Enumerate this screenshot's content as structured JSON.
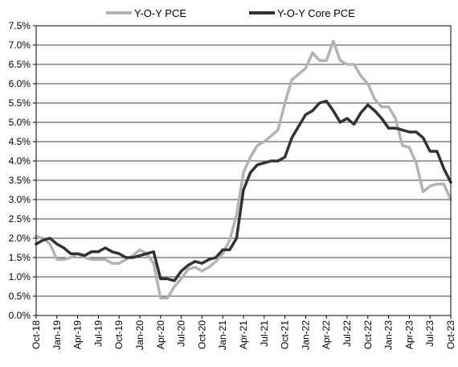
{
  "chart_data": {
    "type": "line",
    "title": "",
    "xlabel": "",
    "ylabel": "",
    "ylim": [
      0,
      7.5
    ],
    "y_ticks": [
      "0.0%",
      "0.5%",
      "1.0%",
      "1.5%",
      "2.0%",
      "2.5%",
      "3.0%",
      "3.5%",
      "4.0%",
      "4.5%",
      "5.0%",
      "5.5%",
      "6.0%",
      "6.5%",
      "7.0%",
      "7.5%"
    ],
    "x_ticks": [
      "Oct-18",
      "Jan-19",
      "Apr-19",
      "Jul-19",
      "Oct-19",
      "Jan-20",
      "Apr-20",
      "Jul-20",
      "Oct-20",
      "Jan-21",
      "Apr-21",
      "Jul-21",
      "Oct-21",
      "Jan-22",
      "Apr-22",
      "Jul-22",
      "Oct-22",
      "Jan-23",
      "Apr-23",
      "Jul-23",
      "Oct-23"
    ],
    "grid": "horizontal",
    "legend_position": "top",
    "colors": {
      "pce": "#b3b3b3",
      "core": "#333333"
    },
    "x": [
      "Oct-18",
      "Nov-18",
      "Dec-18",
      "Jan-19",
      "Feb-19",
      "Mar-19",
      "Apr-19",
      "May-19",
      "Jun-19",
      "Jul-19",
      "Aug-19",
      "Sep-19",
      "Oct-19",
      "Nov-19",
      "Dec-19",
      "Jan-20",
      "Feb-20",
      "Mar-20",
      "Apr-20",
      "May-20",
      "Jun-20",
      "Jul-20",
      "Aug-20",
      "Sep-20",
      "Oct-20",
      "Nov-20",
      "Dec-20",
      "Jan-21",
      "Feb-21",
      "Mar-21",
      "Apr-21",
      "May-21",
      "Jun-21",
      "Jul-21",
      "Aug-21",
      "Sep-21",
      "Oct-21",
      "Nov-21",
      "Dec-21",
      "Jan-22",
      "Feb-22",
      "Mar-22",
      "Apr-22",
      "May-22",
      "Jun-22",
      "Jul-22",
      "Aug-22",
      "Sep-22",
      "Oct-22",
      "Nov-22",
      "Dec-22",
      "Jan-23",
      "Feb-23",
      "Mar-23",
      "Apr-23",
      "May-23",
      "Jun-23",
      "Jul-23",
      "Aug-23",
      "Sep-23",
      "Oct-23"
    ],
    "series": [
      {
        "name": "Y-O-Y PCE",
        "values": [
          2.05,
          2.0,
          1.85,
          1.45,
          1.45,
          1.5,
          1.6,
          1.5,
          1.45,
          1.45,
          1.45,
          1.35,
          1.35,
          1.45,
          1.55,
          1.7,
          1.6,
          1.35,
          0.45,
          0.45,
          0.75,
          0.95,
          1.2,
          1.25,
          1.15,
          1.25,
          1.4,
          1.6,
          1.95,
          2.6,
          3.7,
          4.1,
          4.4,
          4.5,
          4.65,
          4.8,
          5.5,
          6.1,
          6.25,
          6.4,
          6.8,
          6.6,
          6.6,
          7.1,
          6.6,
          6.5,
          6.5,
          6.2,
          6.0,
          5.6,
          5.4,
          5.4,
          5.1,
          4.4,
          4.35,
          3.95,
          3.2,
          3.35,
          3.4,
          3.4,
          3.0
        ]
      },
      {
        "name": "Y-O-Y Core PCE",
        "values": [
          1.85,
          1.95,
          2.0,
          1.85,
          1.75,
          1.6,
          1.6,
          1.55,
          1.65,
          1.65,
          1.75,
          1.65,
          1.6,
          1.5,
          1.5,
          1.55,
          1.6,
          1.65,
          0.95,
          0.95,
          0.9,
          1.15,
          1.3,
          1.4,
          1.35,
          1.45,
          1.5,
          1.7,
          1.7,
          2.0,
          3.25,
          3.7,
          3.9,
          3.95,
          4.0,
          4.0,
          4.1,
          4.6,
          4.9,
          5.2,
          5.3,
          5.5,
          5.55,
          5.3,
          5.0,
          5.1,
          4.95,
          5.25,
          5.45,
          5.3,
          5.1,
          4.85,
          4.85,
          4.8,
          4.75,
          4.75,
          4.6,
          4.25,
          4.25,
          3.8,
          3.45
        ]
      }
    ]
  }
}
